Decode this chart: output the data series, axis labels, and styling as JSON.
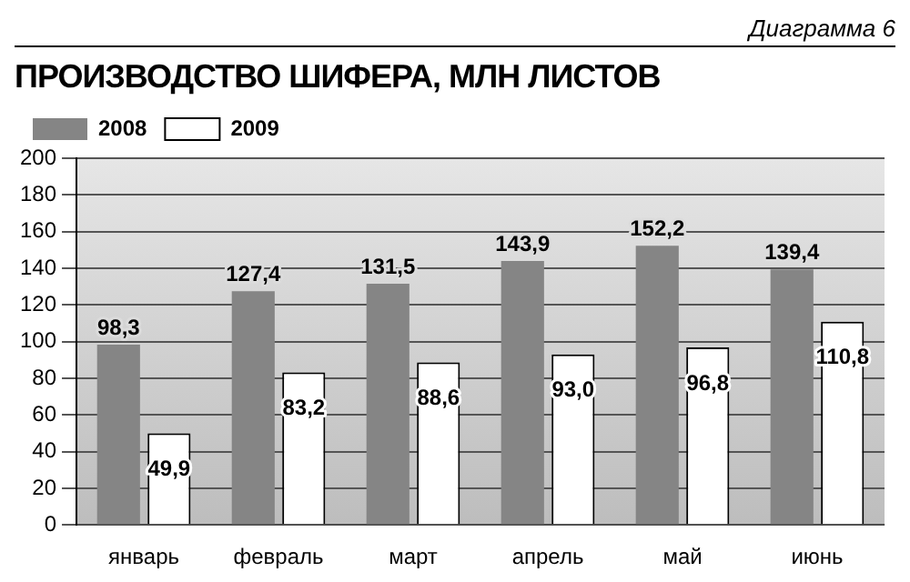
{
  "chart_data": {
    "type": "bar",
    "title": "ПРОИЗВОДСТВО ШИФЕРА, МЛН ЛИСТОВ",
    "annotations": [
      "Диаграмма 6"
    ],
    "categories": [
      "январь",
      "февраль",
      "март",
      "апрель",
      "май",
      "июнь"
    ],
    "series": [
      {
        "name": "2008",
        "color": "#858585",
        "values": [
          98.3,
          127.4,
          131.5,
          143.9,
          152.2,
          139.4
        ],
        "value_labels": [
          "98,3",
          "127,4",
          "131,5",
          "143,9",
          "152,2",
          "139,4"
        ]
      },
      {
        "name": "2009",
        "color": "#ffffff",
        "values": [
          49.9,
          83.2,
          88.6,
          93.0,
          96.8,
          110.8
        ],
        "value_labels": [
          "49,9",
          "83,2",
          "88,6",
          "93,0",
          "96,8",
          "110,8"
        ]
      }
    ],
    "ylim": [
      0,
      200
    ],
    "yticks": [
      0,
      20,
      40,
      60,
      80,
      100,
      120,
      140,
      160,
      180,
      200
    ],
    "grid": "y",
    "legend": "top left"
  }
}
